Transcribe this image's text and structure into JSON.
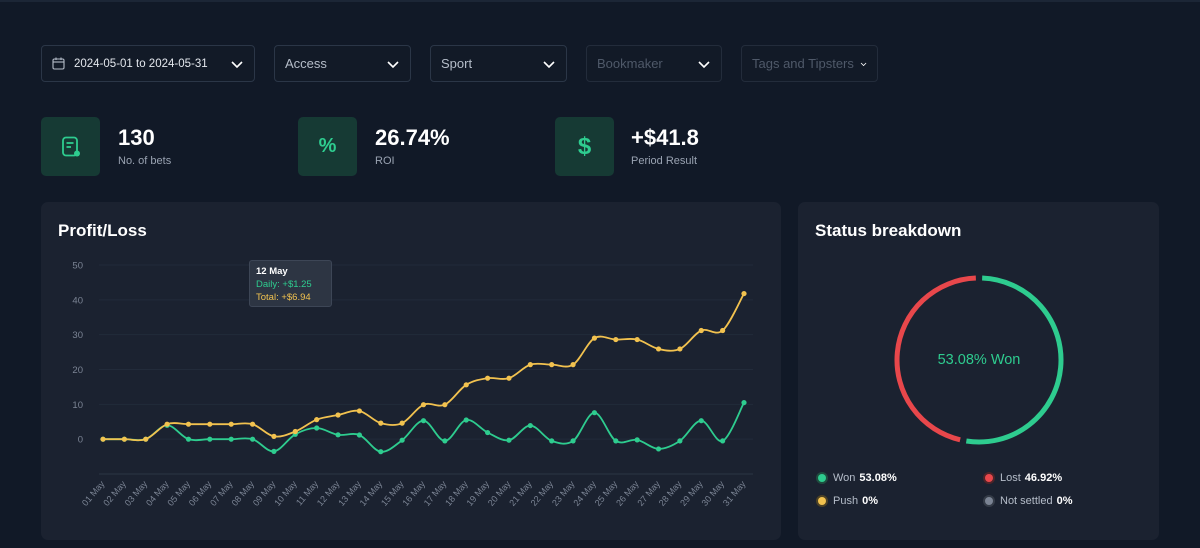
{
  "filters": {
    "date_range": "2024-05-01 to 2024-05-31",
    "access": "Access",
    "sport": "Sport",
    "bookmaker": "Bookmaker",
    "tags": "Tags and Tipsters"
  },
  "stats": [
    {
      "value": "130",
      "label": "No. of bets",
      "icon": "bet-slip-icon"
    },
    {
      "value": "26.74%",
      "label": "ROI",
      "icon": "percent-icon"
    },
    {
      "value": "+$41.8",
      "label": "Period Result",
      "icon": "dollar-icon"
    }
  ],
  "profit_loss": {
    "title": "Profit/Loss",
    "tooltip": {
      "date": "12 May",
      "daily": "Daily: +$1.25",
      "total": "Total: +$6.94"
    }
  },
  "status": {
    "title": "Status breakdown",
    "center_label": "53.08% Won",
    "won_pct": 53.08,
    "lost_pct": 46.92,
    "legend": {
      "won": {
        "label": "Won",
        "value": "53.08%"
      },
      "lost": {
        "label": "Lost",
        "value": "46.92%"
      },
      "push": {
        "label": "Push",
        "value": "0%"
      },
      "not_settled": {
        "label": "Not settled",
        "value": "0%"
      }
    }
  },
  "colors": {
    "won": "#2ecc8f",
    "lost": "#e8474b",
    "push": "#f2c24f",
    "not_settled": "#7b8494",
    "daily": "#2ecc8f",
    "total": "#f2c24f"
  },
  "chart_data": {
    "type": "line",
    "title": "Profit/Loss",
    "categories": [
      "01 May",
      "02 May",
      "03 May",
      "04 May",
      "05 May",
      "06 May",
      "07 May",
      "08 May",
      "09 May",
      "10 May",
      "11 May",
      "12 May",
      "13 May",
      "14 May",
      "15 May",
      "16 May",
      "17 May",
      "18 May",
      "19 May",
      "20 May",
      "21 May",
      "22 May",
      "23 May",
      "24 May",
      "25 May",
      "26 May",
      "27 May",
      "28 May",
      "29 May",
      "30 May",
      "31 May"
    ],
    "yticks": [
      0,
      10,
      20,
      30,
      40,
      50
    ],
    "ylim": [
      -10,
      50
    ],
    "series": [
      {
        "name": "Daily",
        "values": [
          0,
          0,
          0,
          4,
          0,
          0,
          0,
          0,
          -3.5,
          1.4,
          3.2,
          1.25,
          1.2,
          -3.6,
          -0.3,
          5.3,
          -0.5,
          5.5,
          1.9,
          -0.3,
          3.9,
          -0.5,
          -0.5,
          7.6,
          -0.5,
          -0.2,
          -2.8,
          -0.5,
          5.3,
          -0.5,
          10.5
        ]
      },
      {
        "name": "Total",
        "values": [
          0,
          0,
          0,
          4.3,
          4.3,
          4.3,
          4.3,
          4.3,
          0.8,
          2.2,
          5.6,
          6.94,
          8.1,
          4.6,
          4.6,
          9.9,
          9.9,
          15.6,
          17.5,
          17.5,
          21.4,
          21.4,
          21.4,
          29,
          28.6,
          28.6,
          25.9,
          25.9,
          31.2,
          31.2,
          41.8
        ]
      }
    ]
  }
}
